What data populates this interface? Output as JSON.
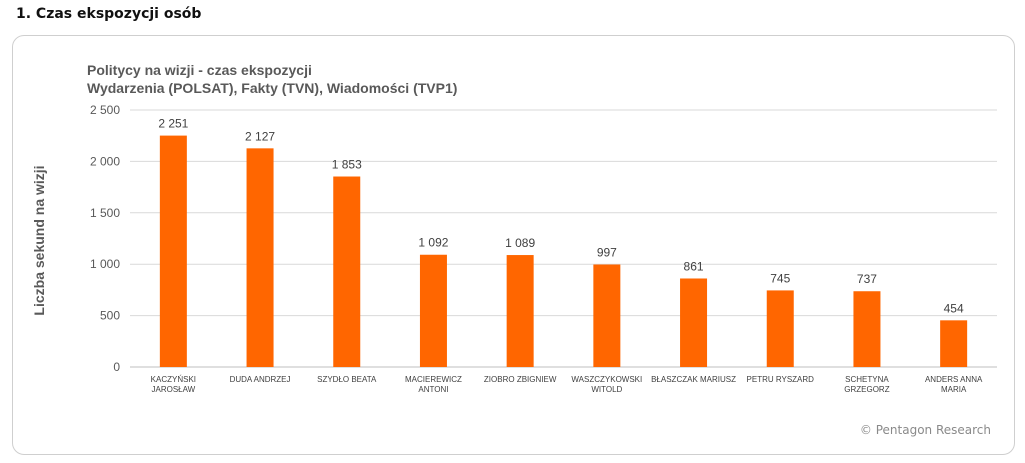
{
  "section_title": "1. Czas ekspozycji osób",
  "credit": "© Pentagon Research",
  "chart_data": {
    "type": "bar",
    "title": "Politycy na wizji - czas ekspozycji",
    "subtitle": "Wydarzenia (POLSAT), Fakty (TVN), Wiadomości (TVP1)",
    "xlabel": "",
    "ylabel": "Liczba sekund na wizji",
    "ylim": [
      0,
      2500
    ],
    "yticks": [
      0,
      500,
      1000,
      1500,
      2000,
      2500
    ],
    "ytick_labels": [
      "0",
      "500",
      "1 000",
      "1 500",
      "2 000",
      "2 500"
    ],
    "grid": true,
    "bar_color": "#ff6600",
    "categories": [
      [
        "KACZYŃSKI",
        "JAROSŁAW"
      ],
      [
        "DUDA ANDRZEJ"
      ],
      [
        "SZYDŁO BEATA"
      ],
      [
        "MACIEREWICZ",
        "ANTONI"
      ],
      [
        "ZIOBRO ZBIGNIEW"
      ],
      [
        "WASZCZYKOWSKI",
        "WITOLD"
      ],
      [
        "BŁASZCZAK MARIUSZ"
      ],
      [
        "PETRU RYSZARD"
      ],
      [
        "SCHETYNA",
        "GRZEGORZ"
      ],
      [
        "ANDERS ANNA",
        "MARIA"
      ]
    ],
    "values": [
      2251,
      2127,
      1853,
      1092,
      1089,
      997,
      861,
      745,
      737,
      454
    ],
    "value_labels": [
      "2 251",
      "2 127",
      "1 853",
      "1 092",
      "1 089",
      "997",
      "861",
      "745",
      "737",
      "454"
    ]
  }
}
